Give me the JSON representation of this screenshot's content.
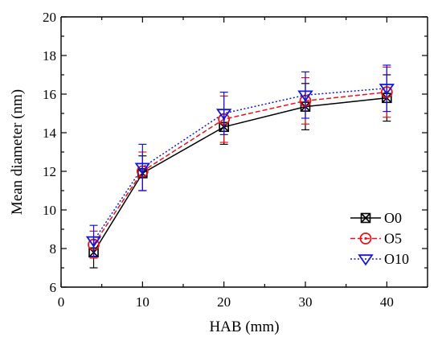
{
  "chart_data": {
    "type": "line",
    "xlabel": "HAB (mm)",
    "ylabel": "Mean diameter (nm)",
    "xlim": [
      0,
      45
    ],
    "ylim": [
      6,
      20
    ],
    "xticks": [
      0,
      10,
      20,
      30,
      40
    ],
    "yticks": [
      6,
      8,
      10,
      12,
      14,
      16,
      18,
      20
    ],
    "grid": false,
    "legend_position": "bottom-right",
    "series": [
      {
        "name": "O0",
        "color": "#000000",
        "line_style": "solid",
        "marker": "boxed-x",
        "x": [
          4,
          10,
          20,
          30,
          40
        ],
        "y": [
          7.8,
          11.9,
          14.3,
          15.35,
          15.8
        ],
        "error": [
          0.8,
          0.9,
          0.9,
          1.2,
          1.2
        ]
      },
      {
        "name": "O5",
        "color": "#e8141c",
        "line_style": "dashed",
        "marker": "circle",
        "x": [
          4,
          10,
          20,
          30,
          40
        ],
        "y": [
          8.2,
          12.0,
          14.7,
          15.65,
          16.1
        ],
        "error": [
          0.7,
          1.0,
          1.2,
          1.2,
          1.3
        ]
      },
      {
        "name": "O10",
        "color": "#1414e0",
        "line_style": "dotted",
        "marker": "triangle-down",
        "x": [
          4,
          10,
          20,
          30,
          40
        ],
        "y": [
          8.4,
          12.2,
          15.0,
          15.95,
          16.3
        ],
        "error": [
          0.8,
          1.2,
          1.1,
          1.2,
          1.2
        ]
      }
    ]
  }
}
